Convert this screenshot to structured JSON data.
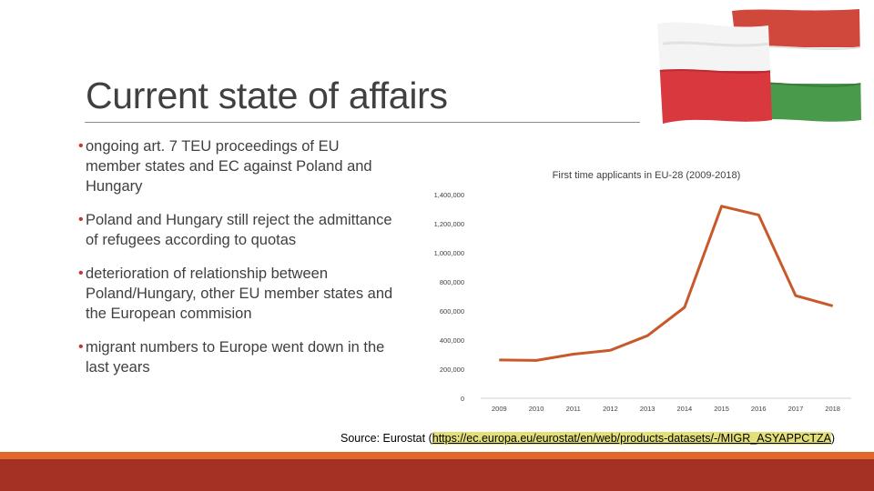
{
  "slide": {
    "title": "Current state of affairs",
    "bullets": [
      "ongoing art. 7 TEU proceedings of EU member states and EC against Poland and Hungary",
      "Poland and Hungary still reject the admittance of refugees according to quotas",
      "deterioration of relationship between Poland/Hungary, other EU member states and the European commision",
      "migrant numbers to Europe went down in the last years"
    ],
    "bullet_glyph": "•",
    "source_prefix": "Source: Eurostat (",
    "source_link": "https://ec.europa.eu/eurostat/en/web/products-datasets/-/MIGR_ASYAPPCTZA",
    "source_suffix": ")",
    "colors": {
      "accent_orange": "#e2682a",
      "accent_red": "#a33124",
      "series_line": "#c8592a"
    },
    "flag_icons": [
      "poland-flag-icon",
      "hungary-flag-icon"
    ]
  },
  "chart_data": {
    "type": "line",
    "title": "First time applicants in EU-28 (2009-2018)",
    "xlabel": "",
    "ylabel": "",
    "categories": [
      "2009",
      "2010",
      "2011",
      "2012",
      "2013",
      "2014",
      "2015",
      "2016",
      "2017",
      "2018"
    ],
    "series": [
      {
        "values": [
          263000,
          260000,
          303000,
          330000,
          430000,
          625000,
          1320000,
          1260000,
          705000,
          635000
        ]
      }
    ],
    "ylim": [
      0,
      1400000
    ],
    "yticks": [
      0,
      200000,
      400000,
      600000,
      800000,
      1000000,
      1200000,
      1400000
    ],
    "ytick_labels": [
      "0",
      "200,000",
      "400,000",
      "600,000",
      "800,000",
      "1,000,000",
      "1,200,000",
      "1,400,000"
    ],
    "grid": false,
    "legend": "none"
  }
}
